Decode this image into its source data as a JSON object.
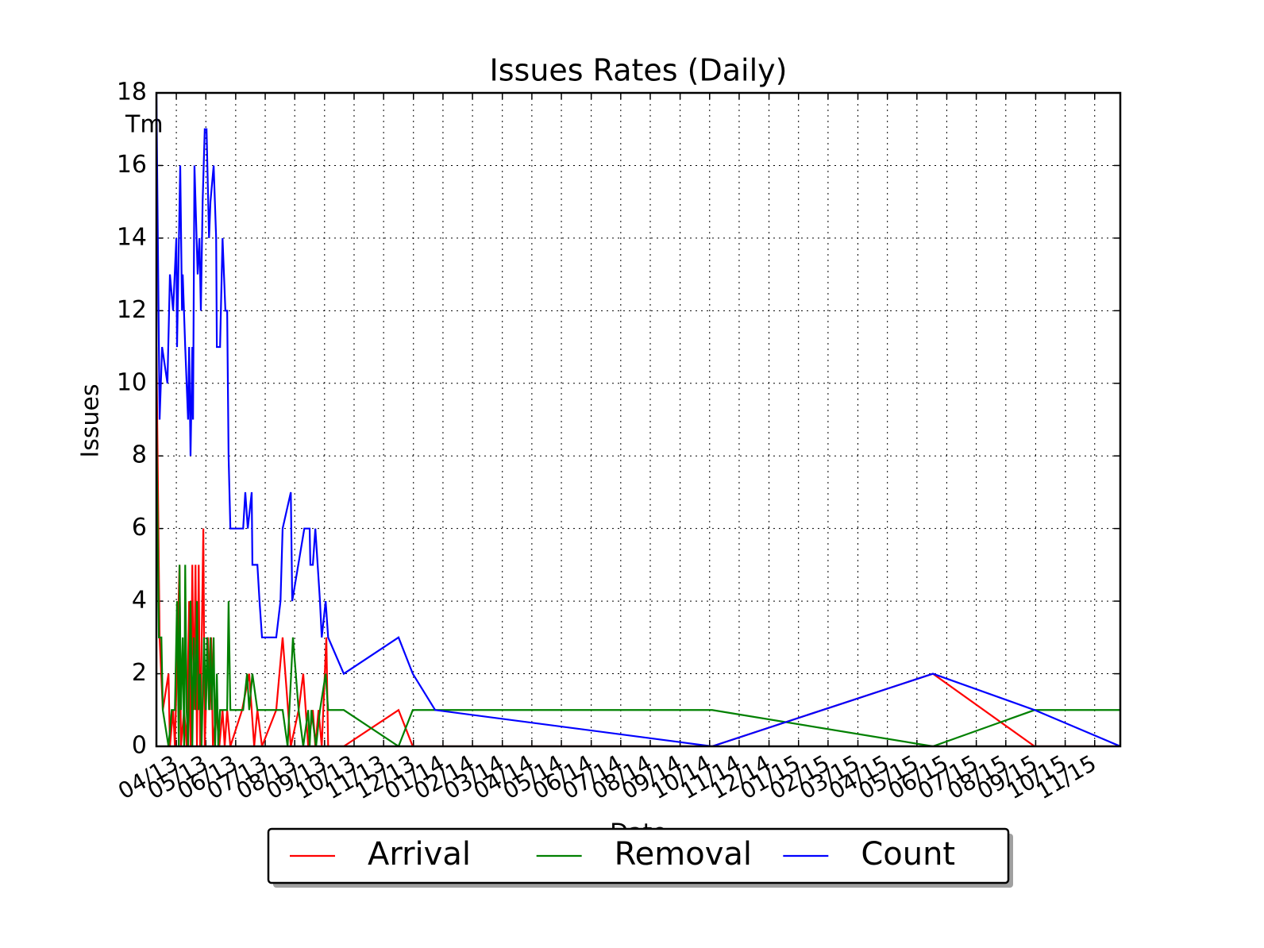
{
  "chart_data": {
    "type": "line",
    "title": "Issues Rates (Daily)",
    "xlabel": "Date",
    "ylabel": "Issues",
    "annotation": "Tm",
    "xlim": [
      2013.194,
      2015.905
    ],
    "ylim": [
      0,
      18
    ],
    "yticks": [
      0,
      2,
      4,
      6,
      8,
      10,
      12,
      14,
      16,
      18
    ],
    "xticks": [
      {
        "value": 2013.25,
        "label": "04/13"
      },
      {
        "value": 2013.333,
        "label": "05/13"
      },
      {
        "value": 2013.417,
        "label": "06/13"
      },
      {
        "value": 2013.5,
        "label": "07/13"
      },
      {
        "value": 2013.583,
        "label": "08/13"
      },
      {
        "value": 2013.667,
        "label": "09/13"
      },
      {
        "value": 2013.75,
        "label": "10/13"
      },
      {
        "value": 2013.833,
        "label": "11/13"
      },
      {
        "value": 2013.917,
        "label": "12/13"
      },
      {
        "value": 2014.0,
        "label": "01/14"
      },
      {
        "value": 2014.083,
        "label": "02/14"
      },
      {
        "value": 2014.167,
        "label": "03/14"
      },
      {
        "value": 2014.25,
        "label": "04/14"
      },
      {
        "value": 2014.333,
        "label": "05/14"
      },
      {
        "value": 2014.417,
        "label": "06/14"
      },
      {
        "value": 2014.5,
        "label": "07/14"
      },
      {
        "value": 2014.583,
        "label": "08/14"
      },
      {
        "value": 2014.667,
        "label": "09/14"
      },
      {
        "value": 2014.75,
        "label": "10/14"
      },
      {
        "value": 2014.833,
        "label": "11/14"
      },
      {
        "value": 2014.917,
        "label": "12/14"
      },
      {
        "value": 2015.0,
        "label": "01/15"
      },
      {
        "value": 2015.083,
        "label": "02/15"
      },
      {
        "value": 2015.167,
        "label": "03/15"
      },
      {
        "value": 2015.25,
        "label": "04/15"
      },
      {
        "value": 2015.333,
        "label": "05/15"
      },
      {
        "value": 2015.417,
        "label": "06/15"
      },
      {
        "value": 2015.5,
        "label": "07/15"
      },
      {
        "value": 2015.583,
        "label": "08/15"
      },
      {
        "value": 2015.667,
        "label": "09/15"
      },
      {
        "value": 2015.75,
        "label": "10/15"
      },
      {
        "value": 2015.833,
        "label": "11/15"
      }
    ],
    "grid": true,
    "legend": "lower center",
    "series": [
      {
        "name": "Arrival",
        "color": "#ff0000",
        "x": [
          2013.194,
          2013.203,
          2013.212,
          2013.228,
          2013.232,
          2013.241,
          2013.246,
          2013.259,
          2013.263,
          2013.272,
          2013.279,
          2013.286,
          2013.29,
          2013.295,
          2013.299,
          2013.304,
          2013.308,
          2013.313,
          2013.317,
          2013.326,
          2013.33,
          2013.339,
          2013.344,
          2013.348,
          2013.353,
          2013.362,
          2013.371,
          2013.38,
          2013.386,
          2013.393,
          2013.402,
          2013.435,
          2013.455,
          2013.469,
          2013.478,
          2013.491,
          2013.531,
          2013.549,
          2013.572,
          2013.594,
          2013.607,
          2013.621,
          2013.634,
          2013.641,
          2013.65,
          2013.659,
          2013.672,
          2013.677,
          2013.721,
          2013.875,
          2013.915,
          2013.978,
          2014.757,
          2015.378,
          2015.664,
          2015.905
        ],
        "values": [
          11,
          3,
          1,
          2,
          0,
          1,
          0,
          5,
          0,
          1,
          0,
          4,
          0,
          5,
          1,
          5,
          0,
          5,
          0,
          6,
          0,
          3,
          1,
          3,
          0,
          1,
          0,
          1,
          0,
          1,
          0,
          1,
          2,
          0,
          1,
          0,
          1,
          3,
          0,
          1,
          2,
          0,
          1,
          0,
          1,
          0,
          3,
          0,
          0,
          1,
          0,
          0,
          0,
          2,
          0,
          0
        ]
      },
      {
        "name": "Removal",
        "color": "#008000",
        "x": [
          2013.194,
          2013.201,
          2013.208,
          2013.212,
          2013.228,
          2013.237,
          2013.246,
          2013.252,
          2013.257,
          2013.259,
          2013.263,
          2013.268,
          2013.272,
          2013.275,
          2013.279,
          2013.283,
          2013.29,
          2013.295,
          2013.299,
          2013.304,
          2013.308,
          2013.313,
          2013.317,
          2013.321,
          2013.328,
          2013.333,
          2013.337,
          2013.342,
          2013.346,
          2013.35,
          2013.355,
          2013.359,
          2013.364,
          2013.368,
          2013.373,
          2013.393,
          2013.397,
          2013.402,
          2013.438,
          2013.449,
          2013.455,
          2013.464,
          2013.478,
          2013.549,
          2013.563,
          2013.578,
          2013.594,
          2013.607,
          2013.621,
          2013.625,
          2013.63,
          2013.643,
          2013.654,
          2013.67,
          2013.677,
          2013.721,
          2013.875,
          2013.915,
          2013.978,
          2014.757,
          2015.378,
          2015.664,
          2015.905
        ],
        "values": [
          9,
          3,
          3,
          1,
          0,
          1,
          1,
          4,
          0,
          5,
          1,
          3,
          0,
          5,
          1,
          0,
          4,
          0,
          3,
          1,
          4,
          1,
          2,
          0,
          3,
          1,
          3,
          1,
          3,
          1,
          3,
          0,
          2,
          0,
          1,
          1,
          4,
          1,
          1,
          2,
          1,
          2,
          1,
          1,
          0,
          3,
          1,
          0,
          1,
          0,
          1,
          0,
          1,
          2,
          1,
          1,
          0,
          1,
          1,
          1,
          0,
          1,
          1
        ]
      },
      {
        "name": "Count",
        "color": "#0000ff",
        "x": [
          2013.194,
          2013.203,
          2013.21,
          2013.225,
          2013.232,
          2013.241,
          2013.25,
          2013.252,
          2013.261,
          2013.266,
          2013.268,
          2013.275,
          2013.283,
          2013.286,
          2013.29,
          2013.295,
          2013.297,
          2013.301,
          2013.31,
          2013.315,
          2013.319,
          2013.324,
          2013.33,
          2013.335,
          2013.342,
          2013.346,
          2013.355,
          2013.362,
          2013.364,
          2013.373,
          2013.38,
          2013.388,
          2013.393,
          2013.397,
          2013.402,
          2013.438,
          2013.444,
          2013.451,
          2013.462,
          2013.464,
          2013.478,
          2013.484,
          2013.491,
          2013.531,
          2013.543,
          2013.549,
          2013.572,
          2013.576,
          2013.61,
          2013.625,
          2013.627,
          2013.634,
          2013.641,
          2013.654,
          2013.659,
          2013.67,
          2013.677,
          2013.721,
          2013.875,
          2013.915,
          2013.978,
          2014.757,
          2015.378,
          2015.664,
          2015.905
        ],
        "values": [
          18,
          9,
          11,
          10,
          13,
          12,
          14,
          11,
          16,
          12,
          13,
          11,
          9,
          11,
          8,
          11,
          9,
          16,
          13,
          14,
          12,
          15,
          17,
          17,
          14,
          15,
          16,
          14,
          11,
          11,
          14,
          12,
          12,
          8,
          6,
          6,
          7,
          6,
          7,
          5,
          5,
          4,
          3,
          3,
          4,
          6,
          7,
          4,
          6,
          6,
          5,
          5,
          6,
          4,
          3,
          4,
          3,
          2,
          3,
          2,
          1,
          0,
          2,
          1,
          0
        ]
      }
    ]
  }
}
